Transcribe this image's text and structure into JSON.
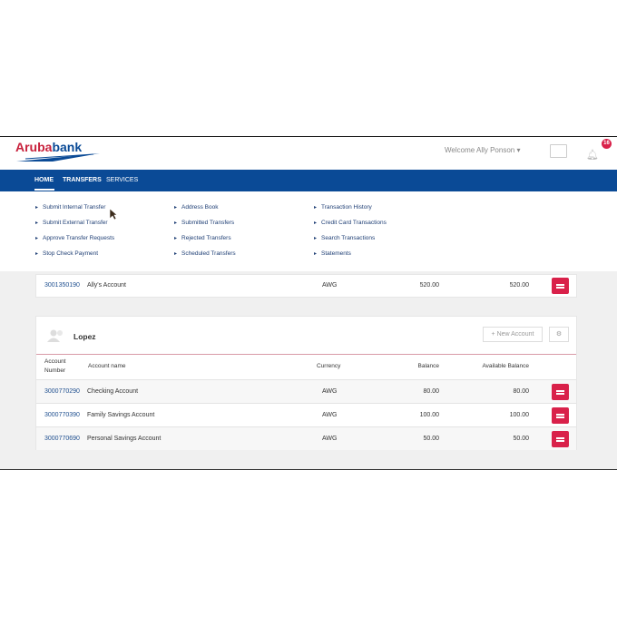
{
  "header": {
    "logo_a": "Aruba",
    "logo_b": "bank",
    "welcome": "Welcome Ally Ponson ▾",
    "notifications": "16"
  },
  "nav": {
    "items": [
      "HOME",
      "TRANSFERS",
      "SERVICES"
    ]
  },
  "menu": {
    "columns": [
      [
        "Submit Internal Transfer",
        "Submit External Transfer",
        "Approve Transfer Requests",
        "Stop Check Payment"
      ],
      [
        "Address Book",
        "Submitted Transfers",
        "Rejected Transfers",
        "Scheduled Transfers"
      ],
      [
        "Transaction History",
        "Credit Card Transactions",
        "Search Transactions",
        "Statements"
      ]
    ]
  },
  "first_account": {
    "number": "3001350190",
    "name": "Ally's Account",
    "currency": "AWG",
    "balance": "520.00",
    "available": "520.00"
  },
  "group": {
    "name": "Lopez",
    "new_account": "+ New Account",
    "columns": {
      "number_1": "Account",
      "number_2": "Number",
      "name": "Account name",
      "currency": "Currency",
      "balance": "Balance",
      "available": "Available Balance"
    },
    "accounts": [
      {
        "number": "3000770290",
        "name": "Checking Account",
        "currency": "AWG",
        "balance": "80.00",
        "available": "80.00"
      },
      {
        "number": "3000770390",
        "name": "Family Savings Account",
        "currency": "AWG",
        "balance": "100.00",
        "available": "100.00"
      },
      {
        "number": "3000770690",
        "name": "Personal Savings Account",
        "currency": "AWG",
        "balance": "50.00",
        "available": "50.00"
      }
    ]
  },
  "colors": {
    "brand_blue": "#0a4a96",
    "brand_red": "#d9214a"
  }
}
